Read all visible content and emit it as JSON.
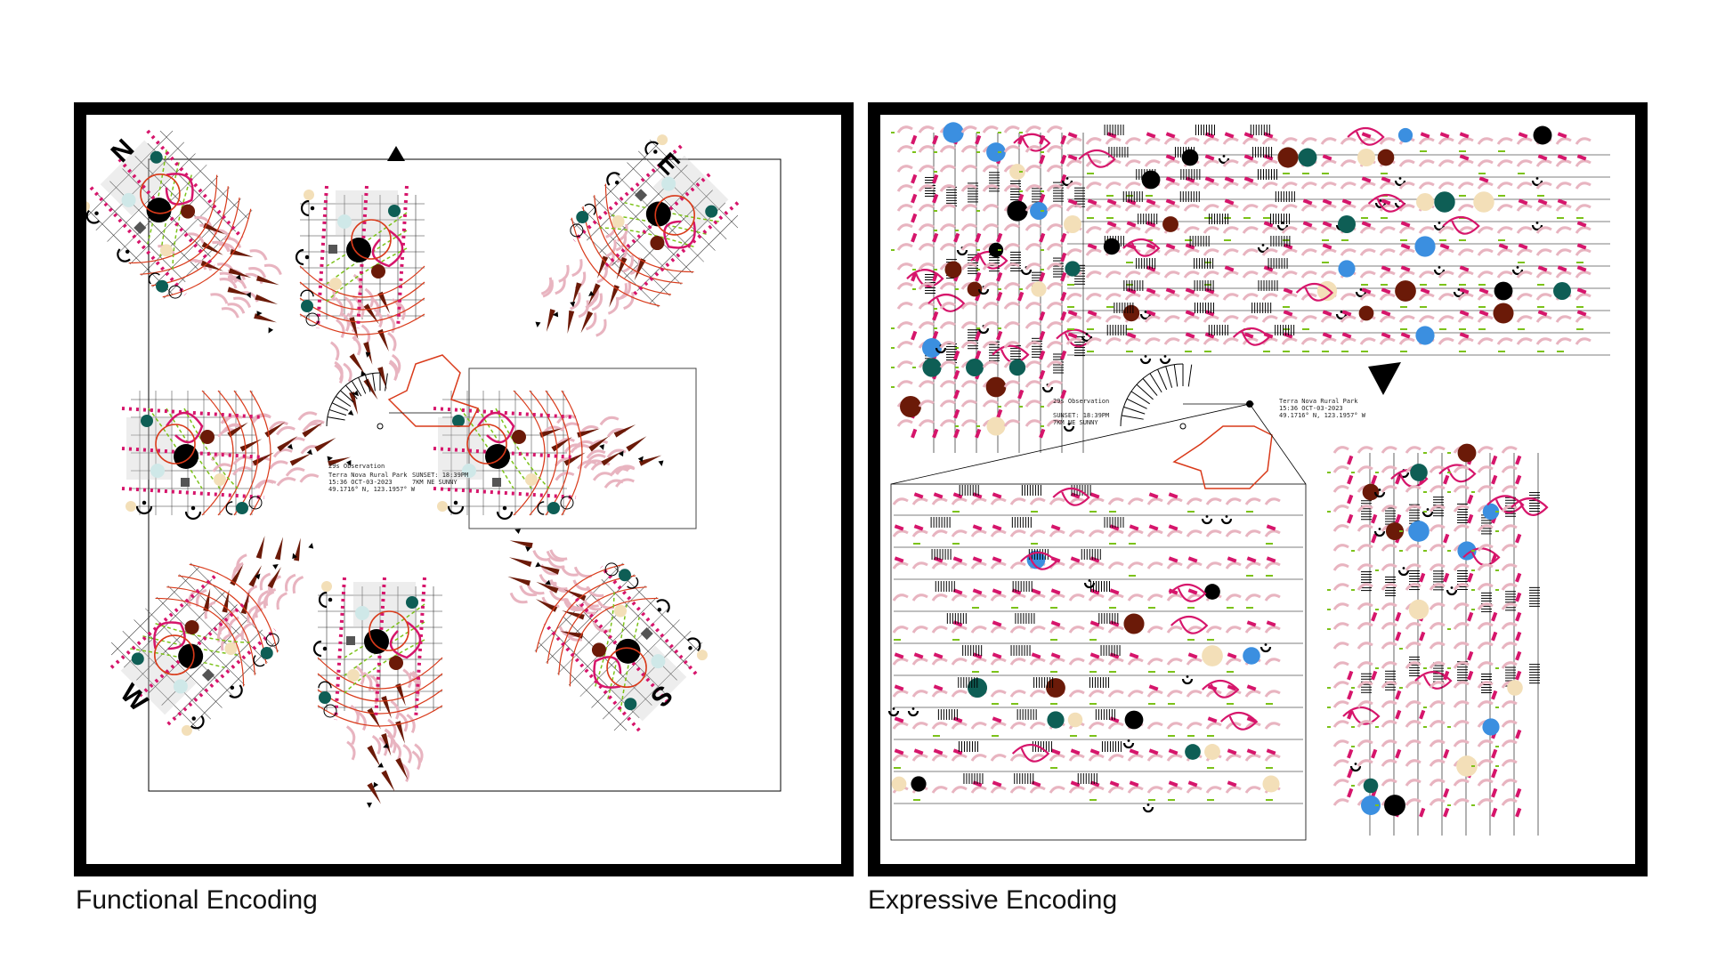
{
  "captions": {
    "functional": "Functional Encoding",
    "expressive": "Expressive Encoding"
  },
  "compass": {
    "north": "N",
    "east": "E",
    "south": "S",
    "west": "W"
  },
  "observation": {
    "title": "29s Observation",
    "location": "Terra Nova Rural Park",
    "datetime": "15:36 OCT-03-2023",
    "coords": "49.1716° N, 123.1957° W",
    "sunset": "SUNSET: 18:39PM",
    "wind_weather": "7KM NE    SUNNY"
  },
  "colors": {
    "magenta": "#d6156b",
    "pink": "#e8b4c0",
    "brown": "#6b1a08",
    "red": "#d93a1a",
    "green": "#7cc21a",
    "teal": "#0e5e55",
    "blue": "#3b8fe0",
    "beige": "#f3dfb8",
    "lightblue": "#cfe8e8",
    "black": "#000000"
  }
}
